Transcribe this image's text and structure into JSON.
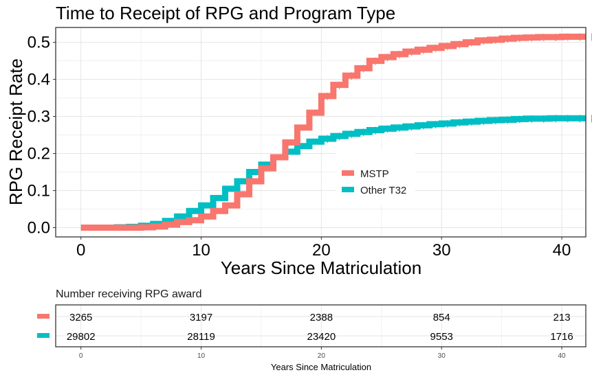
{
  "chart_data": {
    "type": "line",
    "subtype": "step",
    "title": "Time to Receipt of RPG and Program Type",
    "xlabel": "Years Since Matriculation",
    "ylabel": "RPG Receipt Rate",
    "xlim": [
      -2.1,
      42
    ],
    "ylim": [
      -0.025,
      0.54
    ],
    "x_ticks": [
      0,
      10,
      20,
      30,
      40
    ],
    "x_tick_labels": [
      "0",
      "10",
      "20",
      "30",
      "40"
    ],
    "y_ticks": [
      0.0,
      0.1,
      0.2,
      0.3,
      0.4,
      0.5
    ],
    "y_tick_labels": [
      "0.0",
      "0.1",
      "0.2",
      "0.3",
      "0.4",
      "0.5"
    ],
    "grid": true,
    "legend_position": "inside-center-right",
    "series": [
      {
        "name": "MSTP",
        "color": "#F8766D",
        "x": [
          0,
          1,
          2,
          3,
          4,
          5,
          6,
          7,
          8,
          9,
          10,
          11,
          12,
          13,
          14,
          15,
          16,
          17,
          18,
          19,
          20,
          21,
          22,
          23,
          24,
          25,
          26,
          27,
          28,
          29,
          30,
          31,
          32,
          33,
          34,
          35,
          36,
          37,
          38,
          39,
          40,
          41,
          42
        ],
        "values": [
          0,
          0,
          0,
          0,
          0,
          0.001,
          0.003,
          0.008,
          0.015,
          0.02,
          0.03,
          0.045,
          0.06,
          0.09,
          0.125,
          0.16,
          0.19,
          0.23,
          0.27,
          0.31,
          0.355,
          0.385,
          0.41,
          0.43,
          0.45,
          0.46,
          0.468,
          0.475,
          0.48,
          0.485,
          0.49,
          0.495,
          0.5,
          0.505,
          0.507,
          0.51,
          0.512,
          0.513,
          0.514,
          0.514,
          0.515,
          0.515,
          0.515
        ]
      },
      {
        "name": "Other T32",
        "color": "#00BFC4",
        "x": [
          0,
          1,
          2,
          3,
          4,
          5,
          6,
          7,
          8,
          9,
          10,
          11,
          12,
          13,
          14,
          15,
          16,
          17,
          18,
          19,
          20,
          21,
          22,
          23,
          24,
          25,
          26,
          27,
          28,
          29,
          30,
          31,
          32,
          33,
          34,
          35,
          36,
          37,
          38,
          39,
          40,
          41,
          42
        ],
        "values": [
          0,
          0,
          0,
          0.001,
          0.002,
          0.005,
          0.01,
          0.018,
          0.03,
          0.045,
          0.06,
          0.08,
          0.105,
          0.125,
          0.15,
          0.17,
          0.19,
          0.205,
          0.22,
          0.232,
          0.24,
          0.247,
          0.253,
          0.258,
          0.263,
          0.267,
          0.27,
          0.273,
          0.276,
          0.279,
          0.281,
          0.284,
          0.286,
          0.288,
          0.29,
          0.291,
          0.293,
          0.294,
          0.294,
          0.295,
          0.295,
          0.295,
          0.295
        ]
      }
    ],
    "risk_table": {
      "title": "Number receiving RPG award",
      "xlabel": "Years Since Matriculation",
      "x_ticks": [
        0,
        10,
        20,
        30,
        40
      ],
      "x_tick_labels": [
        "0",
        "10",
        "20",
        "30",
        "40"
      ],
      "rows": [
        {
          "name": "MSTP",
          "color": "#F8766D",
          "values": [
            "3265",
            "3197",
            "2388",
            "854",
            "213"
          ]
        },
        {
          "name": "Other T32",
          "color": "#00BFC4",
          "values": [
            "29802",
            "28119",
            "23420",
            "9553",
            "1716"
          ]
        }
      ]
    }
  }
}
